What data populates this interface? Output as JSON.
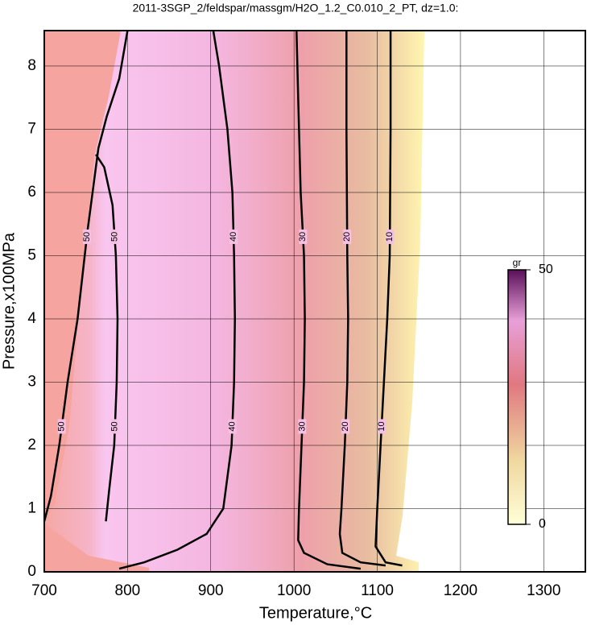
{
  "chart_data": {
    "type": "contour",
    "title": "2011-3SGP_2/feldspar/massgm/H2O_1.2_C0.010_2_PT, dz=1.0:",
    "x_label": "Temperature,°C",
    "y_label": "Pressure,x100MPa",
    "xlim": [
      700,
      1350
    ],
    "xticks": [
      700,
      800,
      900,
      1000,
      1100,
      1200,
      1300
    ],
    "ylim": [
      0,
      8.56
    ],
    "yticks": [
      0,
      1,
      2,
      3,
      4,
      5,
      6,
      7,
      8
    ],
    "grid": true,
    "colorbar": {
      "label": "gr",
      "zlim": [
        0,
        50
      ],
      "zticks": [
        0,
        50
      ]
    },
    "contours": [
      {
        "level": 50,
        "x": [
          800,
          790,
          775,
          765,
          752,
          740,
          728,
          718,
          708,
          700
        ],
        "y": [
          8.56,
          7.8,
          7.2,
          6.7,
          5.4,
          4.0,
          3.0,
          2.0,
          1.2,
          0.8
        ]
      },
      {
        "level": 50,
        "x": [
          762,
          772,
          782,
          786,
          788,
          787,
          784,
          778,
          774
        ],
        "y": [
          6.6,
          6.4,
          5.8,
          5.0,
          4.0,
          3.0,
          2.0,
          1.3,
          0.8
        ]
      },
      {
        "level": 40,
        "x": [
          903,
          910,
          920,
          926,
          928,
          929,
          928,
          925,
          915,
          895,
          860,
          820,
          790
        ],
        "y": [
          8.56,
          8.0,
          7.0,
          6.0,
          5.0,
          4.0,
          3.0,
          2.0,
          1.0,
          0.6,
          0.35,
          0.15,
          0.05
        ]
      },
      {
        "level": 30,
        "x": [
          1003,
          1005,
          1008,
          1012,
          1013,
          1012,
          1009,
          1006,
          1005,
          1012,
          1040,
          1080
        ],
        "y": [
          8.56,
          7.5,
          6.0,
          5.0,
          4.0,
          3.0,
          2.0,
          1.0,
          0.5,
          0.3,
          0.12,
          0.05
        ]
      },
      {
        "level": 20,
        "x": [
          1063,
          1063,
          1064,
          1065,
          1064,
          1061,
          1057,
          1055,
          1058,
          1080,
          1110
        ],
        "y": [
          8.56,
          7.0,
          5.0,
          4.0,
          3.0,
          2.0,
          1.0,
          0.6,
          0.3,
          0.15,
          0.1
        ]
      },
      {
        "level": 10,
        "x": [
          1116,
          1116,
          1115,
          1112,
          1108,
          1104,
          1100,
          1098,
          1110,
          1130
        ],
        "y": [
          8.56,
          7.0,
          5.0,
          4.0,
          3.0,
          2.0,
          1.0,
          0.4,
          0.15,
          0.1
        ]
      }
    ]
  }
}
